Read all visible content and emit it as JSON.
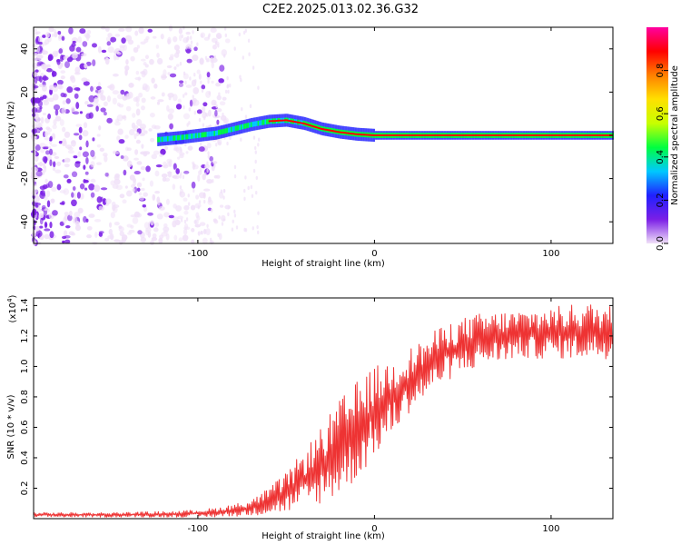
{
  "chart_data": [
    {
      "type": "heatmap",
      "title": "C2E2.2025.013.02.36.G32",
      "xlabel": "Height of straight line (km)",
      "ylabel": "Frequency (Hz)",
      "xlim": [
        -193,
        135
      ],
      "ylim": [
        -50,
        50
      ],
      "x_ticks": [
        -100,
        0,
        100
      ],
      "x_tick_labels": [
        "-100",
        "0",
        "100"
      ],
      "y_ticks": [
        -40,
        -20,
        0,
        20,
        40
      ],
      "y_tick_labels": [
        "-40",
        "-20",
        "0",
        "20",
        "40"
      ],
      "dominant_frequency_trace": {
        "x": [
          -123,
          -110,
          -100,
          -90,
          -80,
          -70,
          -60,
          -50,
          -40,
          -30,
          -20,
          -10,
          0,
          10,
          20,
          40,
          60,
          80,
          100,
          120,
          135
        ],
        "y": [
          -2,
          -1,
          0,
          1,
          3,
          5,
          6.5,
          7,
          5.5,
          3,
          1.5,
          0.5,
          0,
          0,
          0,
          0,
          0,
          0,
          0,
          0,
          0
        ]
      },
      "colorbar": {
        "label": "Normalized spectral amplitude",
        "range": [
          0,
          1
        ],
        "ticks": [
          0.0,
          0.2,
          0.4,
          0.6,
          0.8
        ],
        "tick_labels": [
          "0.0",
          "0.2",
          "0.4",
          "0.6",
          "0.8"
        ],
        "colormap": [
          "#f0e0f8",
          "#7b1fe6",
          "#2020ff",
          "#00c8ff",
          "#00ff40",
          "#c8ff00",
          "#ffe000",
          "#ff8000",
          "#ff0000",
          "#ff00a0"
        ]
      }
    },
    {
      "type": "line",
      "xlabel": "Height of straight line (km)",
      "ylabel": "SNR (10 * v/v)",
      "y_multiplier": "(x10",
      "y_multiplier_exp": "4",
      "y_multiplier_close": ")",
      "xlim": [
        -193,
        135
      ],
      "ylim": [
        0,
        1.45
      ],
      "x_ticks": [
        -100,
        0,
        100
      ],
      "x_tick_labels": [
        "-100",
        "0",
        "100"
      ],
      "y_ticks": [
        0.2,
        0.4,
        0.6,
        0.8,
        1.0,
        1.2,
        1.4
      ],
      "y_tick_labels": [
        "0.2",
        "0.4",
        "0.6",
        "0.8",
        "1.0",
        "1.2",
        "1.4"
      ],
      "series": [
        {
          "name": "SNR",
          "color": "#ee3333",
          "envelope_x": [
            -193,
            -150,
            -110,
            -90,
            -70,
            -60,
            -50,
            -40,
            -30,
            -20,
            -10,
            0,
            10,
            20,
            30,
            40,
            50,
            60,
            80,
            100,
            120,
            135
          ],
          "envelope_low": [
            0.01,
            0.01,
            0.01,
            0.01,
            0.02,
            0.03,
            0.04,
            0.06,
            0.1,
            0.15,
            0.25,
            0.4,
            0.55,
            0.7,
            0.8,
            0.9,
            0.95,
            1.0,
            1.05,
            1.05,
            1.05,
            1.05
          ],
          "envelope_high": [
            0.04,
            0.04,
            0.05,
            0.07,
            0.12,
            0.2,
            0.3,
            0.45,
            0.6,
            0.78,
            0.9,
            1.0,
            1.05,
            1.12,
            1.2,
            1.28,
            1.32,
            1.35,
            1.37,
            1.39,
            1.42,
            1.4
          ]
        }
      ]
    }
  ]
}
